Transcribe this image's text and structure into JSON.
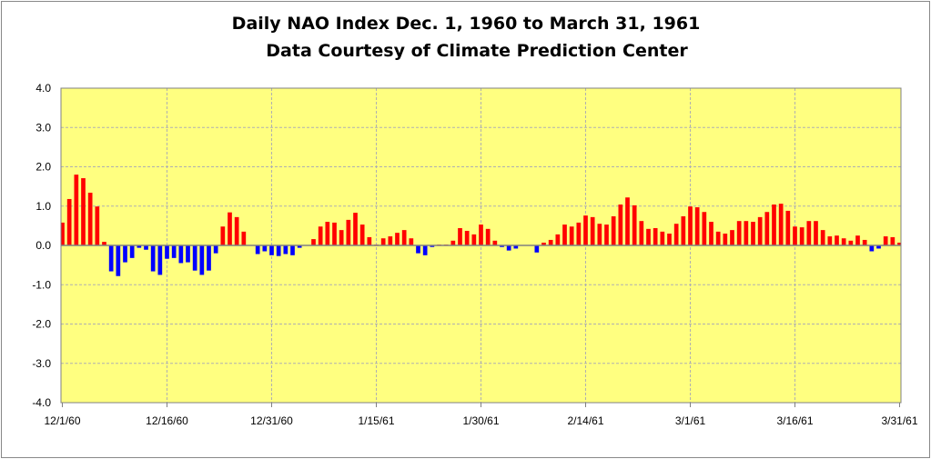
{
  "chart_data": {
    "type": "bar",
    "title": "Daily NAO Index Dec. 1, 1960 to March 31, 1961",
    "subtitle": "Data Courtesy of Climate Prediction Center",
    "xlabel": "",
    "ylabel": "",
    "ylim": [
      -4.0,
      4.0
    ],
    "yticks": [
      "-4.0",
      "-3.0",
      "-2.0",
      "-1.0",
      "0.0",
      "1.0",
      "2.0",
      "3.0",
      "4.0"
    ],
    "xtick_labels": [
      "12/1/60",
      "12/16/60",
      "12/31/60",
      "1/15/61",
      "1/30/61",
      "2/14/61",
      "3/1/61",
      "3/16/61",
      "3/31/61"
    ],
    "xtick_interval_days": 15,
    "start_date": "12/1/60",
    "end_date": "3/31/61",
    "grid": true,
    "legend": "none",
    "colors": {
      "positive": "#FF0000",
      "negative": "#0000FF",
      "plot_background": "#FFFF80",
      "grid": "#B0B0B0"
    },
    "values": [
      0.58,
      1.18,
      1.8,
      1.71,
      1.34,
      0.99,
      0.09,
      -0.66,
      -0.78,
      -0.43,
      -0.32,
      -0.06,
      -0.11,
      -0.66,
      -0.75,
      -0.34,
      -0.32,
      -0.45,
      -0.43,
      -0.64,
      -0.75,
      -0.64,
      -0.2,
      0.48,
      0.84,
      0.72,
      0.35,
      0.0,
      -0.22,
      -0.15,
      -0.25,
      -0.27,
      -0.22,
      -0.25,
      -0.06,
      0.0,
      0.16,
      0.48,
      0.6,
      0.58,
      0.39,
      0.65,
      0.83,
      0.53,
      0.21,
      0.02,
      0.18,
      0.23,
      0.32,
      0.39,
      0.18,
      -0.2,
      -0.25,
      -0.04,
      0.02,
      0.02,
      0.12,
      0.44,
      0.37,
      0.28,
      0.53,
      0.42,
      0.12,
      -0.04,
      -0.13,
      -0.08,
      0.0,
      0.0,
      -0.18,
      0.07,
      0.14,
      0.28,
      0.53,
      0.48,
      0.58,
      0.76,
      0.72,
      0.55,
      0.53,
      0.74,
      1.04,
      1.22,
      1.02,
      0.62,
      0.42,
      0.44,
      0.35,
      0.3,
      0.55,
      0.74,
      0.99,
      0.97,
      0.85,
      0.6,
      0.35,
      0.3,
      0.39,
      0.62,
      0.62,
      0.6,
      0.72,
      0.85,
      1.04,
      1.06,
      0.88,
      0.48,
      0.46,
      0.62,
      0.62,
      0.39,
      0.23,
      0.25,
      0.18,
      0.12,
      0.25,
      0.14,
      -0.15,
      -0.08,
      0.23,
      0.21,
      0.07
    ]
  }
}
